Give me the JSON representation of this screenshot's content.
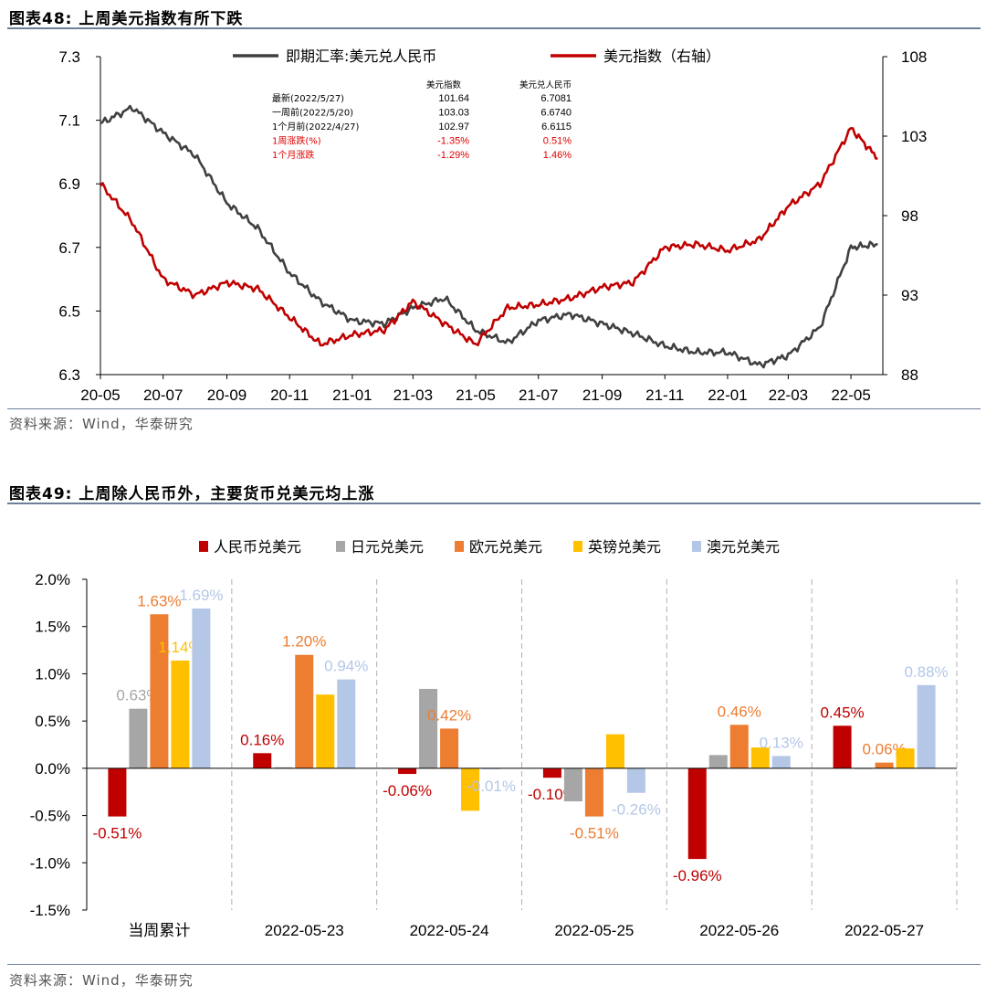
{
  "figure1": {
    "title": "图表48:   上周美元指数有所下跌",
    "source": "资料来源：Wind，华泰研究",
    "chart_data": {
      "type": "line",
      "title": "",
      "left_axis": {
        "ylim": [
          6.3,
          7.3
        ],
        "ticks": [
          "7.3",
          "7.1",
          "6.9",
          "6.7",
          "6.5",
          "6.3"
        ]
      },
      "right_axis": {
        "ylim": [
          88,
          108
        ],
        "ticks": [
          "108",
          "103",
          "98",
          "93",
          "88"
        ]
      },
      "x_ticks": [
        "20-05",
        "20-07",
        "20-09",
        "20-11",
        "21-01",
        "21-03",
        "21-05",
        "21-07",
        "21-09",
        "21-11",
        "22-01",
        "22-03",
        "22-05"
      ],
      "legend": [
        "即期汇率:美元兑人民币",
        "美元指数（右轴）"
      ],
      "legend_position": "top",
      "colors": {
        "cny": "#404040",
        "dxy": "#c00000"
      },
      "series": [
        {
          "name": "即期汇率:美元兑人民币",
          "axis": "left",
          "x": [
            "2020-05",
            "2020-06",
            "2020-07",
            "2020-08",
            "2020-09",
            "2020-10",
            "2020-11",
            "2020-12",
            "2021-01",
            "2021-02",
            "2021-03",
            "2021-04",
            "2021-05",
            "2021-06",
            "2021-07",
            "2021-08",
            "2021-09",
            "2021-10",
            "2021-11",
            "2021-12",
            "2022-01",
            "2022-02",
            "2022-03",
            "2022-04",
            "2022-05",
            "2022-05-27"
          ],
          "values": [
            7.09,
            7.14,
            7.06,
            6.99,
            6.84,
            6.76,
            6.62,
            6.53,
            6.47,
            6.46,
            6.51,
            6.54,
            6.44,
            6.4,
            6.47,
            6.49,
            6.46,
            6.43,
            6.39,
            6.37,
            6.37,
            6.33,
            6.36,
            6.45,
            6.7,
            6.71
          ]
        },
        {
          "name": "美元指数（右轴）",
          "axis": "right",
          "x": [
            "2020-05",
            "2020-06",
            "2020-07",
            "2020-08",
            "2020-09",
            "2020-10",
            "2020-11",
            "2020-12",
            "2021-01",
            "2021-02",
            "2021-03",
            "2021-04",
            "2021-05",
            "2021-06",
            "2021-07",
            "2021-08",
            "2021-09",
            "2021-10",
            "2021-11",
            "2021-12",
            "2022-01",
            "2022-02",
            "2022-03",
            "2022-04",
            "2022-05",
            "2022-05-27"
          ],
          "values": [
            100.0,
            97.6,
            94.0,
            93.0,
            93.8,
            93.4,
            91.6,
            89.9,
            90.5,
            90.8,
            92.6,
            91.2,
            89.9,
            92.2,
            92.4,
            92.8,
            93.5,
            93.8,
            96.0,
            96.2,
            95.8,
            96.5,
            98.6,
            100.0,
            103.5,
            101.6
          ]
        }
      ]
    },
    "table": {
      "col_headers": [
        "美元指数",
        "美元兑人民币"
      ],
      "rows": [
        {
          "label": "最新(2022/5/27)",
          "v1": "101.64",
          "v2": "6.7081",
          "red": false
        },
        {
          "label": "一周前(2022/5/20)",
          "v1": "103.03",
          "v2": "6.6740",
          "red": false
        },
        {
          "label": "1个月前(2022/4/27)",
          "v1": "102.97",
          "v2": "6.6115",
          "red": false
        },
        {
          "label": "1周涨跌(%)",
          "v1": "-1.35%",
          "v2": "0.51%",
          "red": true
        },
        {
          "label": "1个月涨跌",
          "v1": "-1.29%",
          "v2": "1.46%",
          "red": true
        }
      ]
    }
  },
  "figure2": {
    "title": "图表49:   上周除人民币外，主要货币兑美元均上涨",
    "source": "资料来源：Wind，华泰研究",
    "chart_data": {
      "type": "bar",
      "title": "",
      "categories": [
        "当周累计",
        "2022-05-23",
        "2022-05-24",
        "2022-05-25",
        "2022-05-26",
        "2022-05-27"
      ],
      "ylim": [
        -1.5,
        2.0
      ],
      "y_ticks": [
        "2.0%",
        "1.5%",
        "1.0%",
        "0.5%",
        "0.0%",
        "-0.5%",
        "-1.0%",
        "-1.5%"
      ],
      "legend_position": "top",
      "series": [
        {
          "name": "人民币兑美元",
          "color": "#c00000",
          "values": [
            -0.51,
            0.16,
            -0.06,
            -0.1,
            -0.96,
            0.45
          ],
          "labels": [
            "-0.51%",
            "0.16%",
            "-0.06%",
            "-0.10%",
            "-0.96%",
            "0.45%"
          ]
        },
        {
          "name": "日元兑美元",
          "color": "#a6a6a6",
          "values": [
            0.63,
            0.01,
            0.84,
            -0.35,
            0.14,
            0.0
          ],
          "labels": [
            "0.63%",
            "",
            "",
            "",
            "",
            ""
          ]
        },
        {
          "name": "欧元兑美元",
          "color": "#ed7d31",
          "values": [
            1.63,
            1.2,
            0.42,
            -0.51,
            0.46,
            0.06
          ],
          "labels": [
            "1.63%",
            "1.20%",
            "0.42%",
            "-0.51%",
            "0.46%",
            "0.06%"
          ]
        },
        {
          "name": "英镑兑美元",
          "color": "#ffc000",
          "values": [
            1.14,
            0.78,
            -0.45,
            0.36,
            0.22,
            0.21
          ],
          "labels": [
            "1.14%",
            "",
            "",
            "",
            "",
            ""
          ]
        },
        {
          "name": "澳元兑美元",
          "color": "#b4c7e7",
          "values": [
            1.69,
            0.94,
            -0.01,
            -0.26,
            0.13,
            0.88
          ],
          "labels": [
            "1.69%",
            "0.94%",
            "-0.01%",
            "-0.26%",
            "0.13%",
            "0.88%"
          ]
        }
      ]
    }
  }
}
